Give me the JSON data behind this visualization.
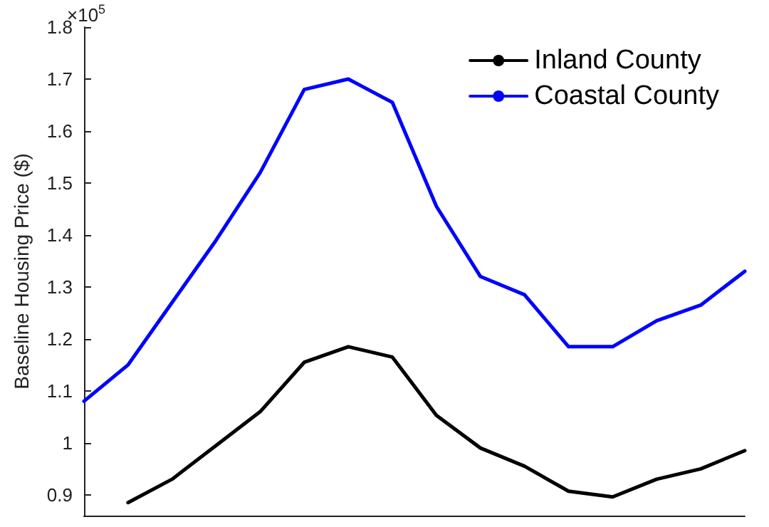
{
  "chart_data": {
    "type": "line",
    "ylabel": "Baseline Housing Price ($)",
    "annotations": [
      "×10$^{5}$"
    ],
    "categories": [
      null,
      null,
      null,
      null,
      null,
      null,
      null,
      null,
      null,
      null,
      null,
      null,
      null,
      null,
      null,
      null
    ],
    "series": [
      {
        "name": "Inland County",
        "color": "#000000",
        "values": [
          null,
          0.885,
          0.93,
          0.995,
          1.06,
          1.155,
          1.185,
          1.165,
          1.053,
          0.99,
          0.955,
          0.907,
          0.896,
          0.93,
          0.95,
          0.985
        ]
      },
      {
        "name": "Coastal County",
        "color": "#0000ff",
        "values": [
          1.08,
          1.15,
          1.27,
          1.39,
          1.52,
          1.68,
          1.7,
          1.655,
          1.455,
          1.32,
          1.285,
          1.185,
          1.185,
          1.235,
          1.265,
          1.33
        ]
      }
    ],
    "ylim": [
      0.86,
      1.8
    ],
    "yticks": [
      0.9,
      1,
      1.1,
      1.2,
      1.3,
      1.4,
      1.5,
      1.6,
      1.7,
      1.8
    ],
    "legend": "top right",
    "grid": false,
    "marker": "none",
    "line_style": "solid"
  }
}
